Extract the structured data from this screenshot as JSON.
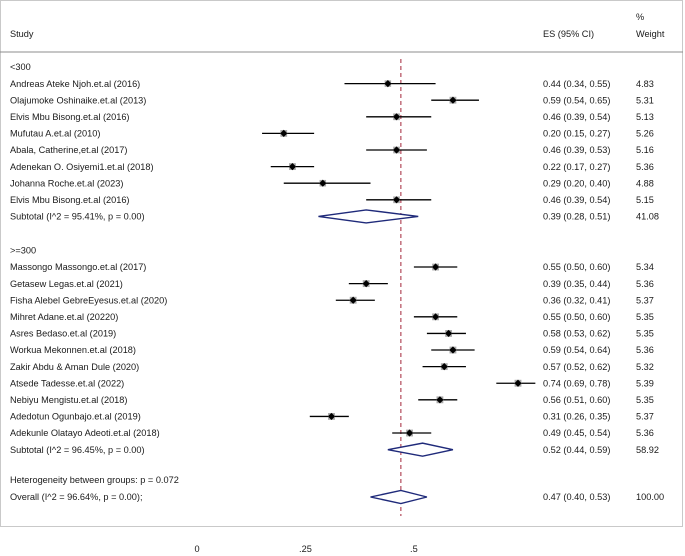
{
  "chart_data": {
    "type": "forest",
    "header": {
      "study": "Study",
      "es": "ES (95% CI)",
      "weight_pct": "%",
      "weight": "Weight"
    },
    "x_reference_line": 0.47,
    "xlim": [
      0,
      0.8
    ],
    "x_ticks": [
      {
        "value": 0,
        "label": "0"
      },
      {
        "value": 0.25,
        "label": ".25"
      },
      {
        "value": 0.5,
        "label": ".5"
      }
    ],
    "groups": [
      {
        "label": "<300",
        "studies": [
          {
            "name": "Andreas Ateke Njoh.et.al  (2016)",
            "es": 0.44,
            "lo": 0.34,
            "hi": 0.55,
            "es_text": "0.44 (0.34, 0.55)",
            "weight": "4.83"
          },
          {
            "name": "Olajumoke Oshinaike.et.al  (2013)",
            "es": 0.59,
            "lo": 0.54,
            "hi": 0.65,
            "es_text": "0.59 (0.54, 0.65)",
            "weight": "5.31"
          },
          {
            "name": "Elvis Mbu Bisong.et.al  (2016)",
            "es": 0.46,
            "lo": 0.39,
            "hi": 0.54,
            "es_text": "0.46 (0.39, 0.54)",
            "weight": "5.13"
          },
          {
            "name": "Mufutau A.et.al  (2010)",
            "es": 0.2,
            "lo": 0.15,
            "hi": 0.27,
            "es_text": "0.20 (0.15, 0.27)",
            "weight": "5.26"
          },
          {
            "name": "Abala, Catherine,et.al  (2017)",
            "es": 0.46,
            "lo": 0.39,
            "hi": 0.53,
            "es_text": "0.46 (0.39, 0.53)",
            "weight": "5.16"
          },
          {
            "name": "Adenekan O. Osiyemi1.et.al  (2018)",
            "es": 0.22,
            "lo": 0.17,
            "hi": 0.27,
            "es_text": "0.22 (0.17, 0.27)",
            "weight": "5.36"
          },
          {
            "name": "Johanna Roche.et.al  (2023)",
            "es": 0.29,
            "lo": 0.2,
            "hi": 0.4,
            "es_text": "0.29 (0.20, 0.40)",
            "weight": "4.88"
          },
          {
            "name": "Elvis Mbu Bisong.et.al  (2016)",
            "es": 0.46,
            "lo": 0.39,
            "hi": 0.54,
            "es_text": "0.46 (0.39, 0.54)",
            "weight": "5.15"
          }
        ],
        "subtotal": {
          "label": "Subtotal  (I^2 = 95.41%, p = 0.00)",
          "es": 0.39,
          "lo": 0.28,
          "hi": 0.51,
          "es_text": "0.39 (0.28, 0.51)",
          "weight": "41.08"
        }
      },
      {
        "label": ">=300",
        "studies": [
          {
            "name": "Massongo Massongo.et.al  (2017)",
            "es": 0.55,
            "lo": 0.5,
            "hi": 0.6,
            "es_text": "0.55 (0.50, 0.60)",
            "weight": "5.34"
          },
          {
            "name": "Getasew Legas.et.al  (2021)",
            "es": 0.39,
            "lo": 0.35,
            "hi": 0.44,
            "es_text": "0.39 (0.35, 0.44)",
            "weight": "5.36"
          },
          {
            "name": "Fisha Alebel GebreEyesus.et.al  (2020)",
            "es": 0.36,
            "lo": 0.32,
            "hi": 0.41,
            "es_text": "0.36 (0.32, 0.41)",
            "weight": "5.37"
          },
          {
            "name": "Mihret Adane.et.al  (20220)",
            "es": 0.55,
            "lo": 0.5,
            "hi": 0.6,
            "es_text": "0.55 (0.50, 0.60)",
            "weight": "5.35"
          },
          {
            "name": "Asres Bedaso.et.al  (2019)",
            "es": 0.58,
            "lo": 0.53,
            "hi": 0.62,
            "es_text": "0.58 (0.53, 0.62)",
            "weight": "5.35"
          },
          {
            "name": "Workua Mekonnen.et.al  (2018)",
            "es": 0.59,
            "lo": 0.54,
            "hi": 0.64,
            "es_text": "0.59 (0.54, 0.64)",
            "weight": "5.36"
          },
          {
            "name": "Zakir Abdu & Aman Dule  (2020)",
            "es": 0.57,
            "lo": 0.52,
            "hi": 0.62,
            "es_text": "0.57 (0.52, 0.62)",
            "weight": "5.32"
          },
          {
            "name": "Atsede Tadesse.et.al  (2022)",
            "es": 0.74,
            "lo": 0.69,
            "hi": 0.78,
            "es_text": "0.74 (0.69, 0.78)",
            "weight": "5.39"
          },
          {
            "name": "Nebiyu Mengistu.et.al  (2018)",
            "es": 0.56,
            "lo": 0.51,
            "hi": 0.6,
            "es_text": "0.56 (0.51, 0.60)",
            "weight": "5.35"
          },
          {
            "name": "Adedotun Ogunbajo.et.al  (2019)",
            "es": 0.31,
            "lo": 0.26,
            "hi": 0.35,
            "es_text": "0.31 (0.26, 0.35)",
            "weight": "5.37"
          },
          {
            "name": "Adekunle Olatayo Adeoti.et.al  (2018)",
            "es": 0.49,
            "lo": 0.45,
            "hi": 0.54,
            "es_text": "0.49 (0.45, 0.54)",
            "weight": "5.36"
          }
        ],
        "subtotal": {
          "label": "Subtotal  (I^2 = 96.45%, p = 0.00)",
          "es": 0.52,
          "lo": 0.44,
          "hi": 0.59,
          "es_text": "0.52 (0.44, 0.59)",
          "weight": "58.92"
        }
      }
    ],
    "heterogeneity": "Heterogeneity between groups: p = 0.072",
    "overall": {
      "label": "Overall  (I^2 = 96.64%, p = 0.00);",
      "es": 0.47,
      "lo": 0.4,
      "hi": 0.53,
      "es_text": "0.47 (0.40, 0.53)",
      "weight": "100.00"
    },
    "colors": {
      "diamond": "#1f2a7a",
      "reference_line": "#a3263b",
      "ci_line": "#000000",
      "weight_box": "#a9a9a9",
      "frame": "#c9c9c9",
      "separator": "#8c8c8c"
    },
    "grid": false
  }
}
